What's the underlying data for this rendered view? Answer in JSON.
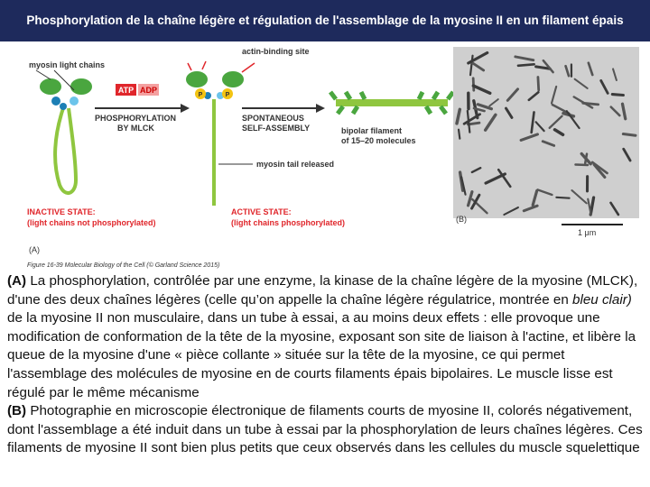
{
  "header": {
    "title": "Phosphorylation de la chaîne légère et régulation de l'assemblage de la myosine II en un filament épais"
  },
  "figure": {
    "myosin_light_chains": "myosin light chains",
    "actin_binding_site": "actin-binding site",
    "atp": "ATP",
    "adp": "ADP",
    "phosphate_left": "P",
    "phosphate_right": "P",
    "phosphorylation": [
      "PHOSPHORYLATION",
      "BY MLCK"
    ],
    "self_assembly": [
      "SPONTANEOUS",
      "SELF-ASSEMBLY"
    ],
    "bipolar_filament": [
      "bipolar filament",
      "of 15–20 molecules"
    ],
    "tail_released": "myosin tail released",
    "inactive_state": [
      "INACTIVE STATE:",
      "(light chains not phosphorylated)"
    ],
    "active_state": [
      "ACTIVE STATE:",
      "(light chains phosphorylated)"
    ],
    "panel_a": "(A)",
    "panel_b": "(B)",
    "scale": "1 μm",
    "credit": "Figure 16-39 Molecular Biology of the Cell (© Garland Science 2015)"
  },
  "caption": {
    "paragraphs": [
      {
        "label": "(A)",
        "text": "La phosphorylation, contrôlée par une enzyme, la kinase de la chaîne légère de la myosine (MLCK), d'une des deux chaînes légères (celle qu’on appelle la chaîne légère régulatrice, montrée en",
        "emphasis": "bleu clair)",
        "text_after": "de la myosine II non musculaire, dans un tube à essai, a au moins deux effets : elle provoque une modification de conformation de la tête de la myosine, exposant son site de liaison à l'actine, et libère la queue de la myosine d'une « pièce collante » située sur la tête de la myosine, ce qui permet l'assemblage des molécules de myosine en de courts filaments épais bipolaires. Le muscle lisse est régulé par le même mécanisme"
      },
      {
        "label": "(B)",
        "text": "Photographie en microscopie électronique de filaments courts de myosine II, colorés négativement, dont l'assemblage a été induit dans un tube à essai par la phosphorylation de leurs chaînes légères. Ces filaments de myosine II sont bien plus petits que ceux observés dans les cellules du muscle squelettique"
      }
    ]
  }
}
